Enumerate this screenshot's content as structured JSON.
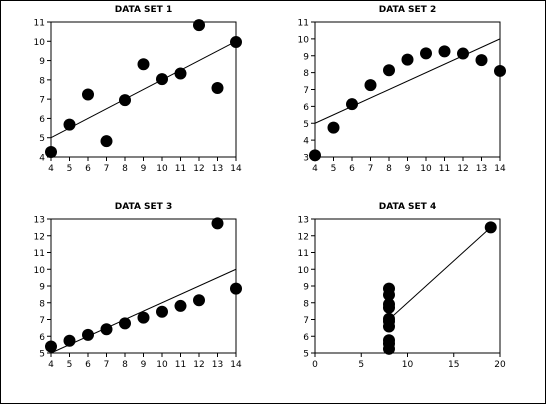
{
  "chart_data": [
    {
      "type": "scatter",
      "title": "DATA SET 1",
      "xlim": [
        4,
        14
      ],
      "ylim": [
        4,
        11
      ],
      "xticks": [
        4,
        5,
        6,
        7,
        8,
        9,
        10,
        11,
        12,
        13,
        14
      ],
      "yticks": [
        4,
        5,
        6,
        7,
        8,
        9,
        10,
        11
      ],
      "x": [
        4,
        5,
        6,
        7,
        8,
        9,
        10,
        11,
        12,
        13,
        14
      ],
      "y": [
        4.26,
        5.68,
        7.24,
        4.82,
        6.95,
        8.81,
        8.04,
        8.33,
        10.84,
        7.58,
        9.96
      ],
      "fit_line": [
        [
          4,
          5.0
        ],
        [
          14,
          10.0
        ]
      ],
      "grid": false
    },
    {
      "type": "scatter",
      "title": "DATA SET 2",
      "xlim": [
        4,
        14
      ],
      "ylim": [
        3,
        11
      ],
      "xticks": [
        4,
        5,
        6,
        7,
        8,
        9,
        10,
        11,
        12,
        13,
        14
      ],
      "yticks": [
        3,
        4,
        5,
        6,
        7,
        8,
        9,
        10,
        11
      ],
      "x": [
        4,
        5,
        6,
        7,
        8,
        9,
        10,
        11,
        12,
        13,
        14
      ],
      "y": [
        3.1,
        4.74,
        6.13,
        7.26,
        8.14,
        8.77,
        9.14,
        9.26,
        9.13,
        8.74,
        8.1
      ],
      "fit_line": [
        [
          4,
          5.0
        ],
        [
          14,
          10.0
        ]
      ],
      "grid": false
    },
    {
      "type": "scatter",
      "title": "DATA SET 3",
      "xlim": [
        4,
        14
      ],
      "ylim": [
        5,
        13
      ],
      "xticks": [
        4,
        5,
        6,
        7,
        8,
        9,
        10,
        11,
        12,
        13,
        14
      ],
      "yticks": [
        5,
        6,
        7,
        8,
        9,
        10,
        11,
        12,
        13
      ],
      "x": [
        4,
        5,
        6,
        7,
        8,
        9,
        10,
        11,
        12,
        13,
        14
      ],
      "y": [
        5.39,
        5.73,
        6.08,
        6.42,
        6.77,
        7.11,
        7.46,
        7.81,
        8.15,
        12.74,
        8.84
      ],
      "fit_line": [
        [
          4,
          5.0
        ],
        [
          14,
          10.0
        ]
      ],
      "grid": false
    },
    {
      "type": "scatter",
      "title": "DATA SET 4",
      "xlim": [
        0,
        20
      ],
      "ylim": [
        5,
        13
      ],
      "xticks": [
        0,
        5,
        10,
        15,
        20
      ],
      "yticks": [
        5,
        6,
        7,
        8,
        9,
        10,
        11,
        12,
        13
      ],
      "x": [
        8,
        8,
        8,
        8,
        8,
        8,
        8,
        8,
        8,
        8,
        19
      ],
      "y": [
        5.25,
        5.56,
        5.76,
        6.58,
        6.89,
        7.04,
        7.71,
        7.91,
        8.47,
        8.84,
        12.5
      ],
      "fit_line": [
        [
          8,
          7.0
        ],
        [
          19,
          12.5
        ]
      ],
      "grid": false
    }
  ]
}
